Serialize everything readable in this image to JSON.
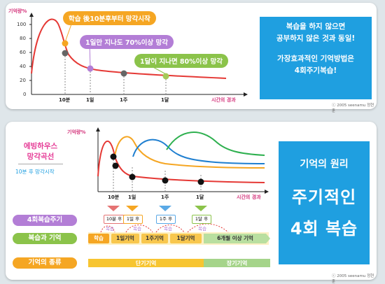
{
  "top": {
    "ylabel": "기억량%",
    "yticks": [
      "100",
      "80",
      "60",
      "40",
      "20",
      "0"
    ],
    "xticks": [
      "10분",
      "1일",
      "1주",
      "1달"
    ],
    "xaxis_label": "시간의 경과",
    "callouts": [
      "학습 後10분후부터 망각시작",
      "1일만 지나도 70%이상 망각",
      "1달이 지나면 80%이상 망각"
    ],
    "info_lines": [
      "복습을 하지 않으면",
      "공부하지 않은 것과 동일!",
      "가장효과적인 기억방법은",
      "4회주기복습!"
    ],
    "copyright": "ⓒ 2005 seenamu 정현훈",
    "colors": {
      "orange": "#f5a623",
      "purple": "#b37ed6",
      "green": "#8bc34a",
      "curve": "#e53935",
      "cyan": "#1f9fe0"
    }
  },
  "bottom": {
    "title_lines": [
      "에빙하우스",
      "망각곡선"
    ],
    "subtitle": "10분 후 망각시작",
    "ylabel": "기억량%",
    "xticks": [
      "10분",
      "1일",
      "1주",
      "1달"
    ],
    "xaxis_label": "시간의 경과",
    "side_labels": [
      "4회복습주기",
      "복습과 기억",
      "기억의 종류"
    ],
    "cycle_badges": [
      "10분 후",
      "1일 후",
      "1주 후",
      "1달 후"
    ],
    "review_marks": [
      "복습",
      "복습",
      "복습",
      "복습"
    ],
    "stages": [
      "학습",
      "1일기억",
      "1주기억",
      "1달기억",
      "6개월 이상 기억"
    ],
    "memory_types": [
      "단기기억",
      "장기기억"
    ],
    "big_lines": [
      "기억의 원리",
      "주기적인",
      "4회 복습"
    ],
    "copyright": "ⓒ 2005 seenamu 정현훈",
    "colors": {
      "curve": "#e53935",
      "orange": "#f5a623",
      "blue": "#1f7fd0",
      "green": "#2eb04f",
      "purple": "#b37ed6",
      "lightgreen": "#a5d48a",
      "yellow": "#f7c531"
    }
  }
}
